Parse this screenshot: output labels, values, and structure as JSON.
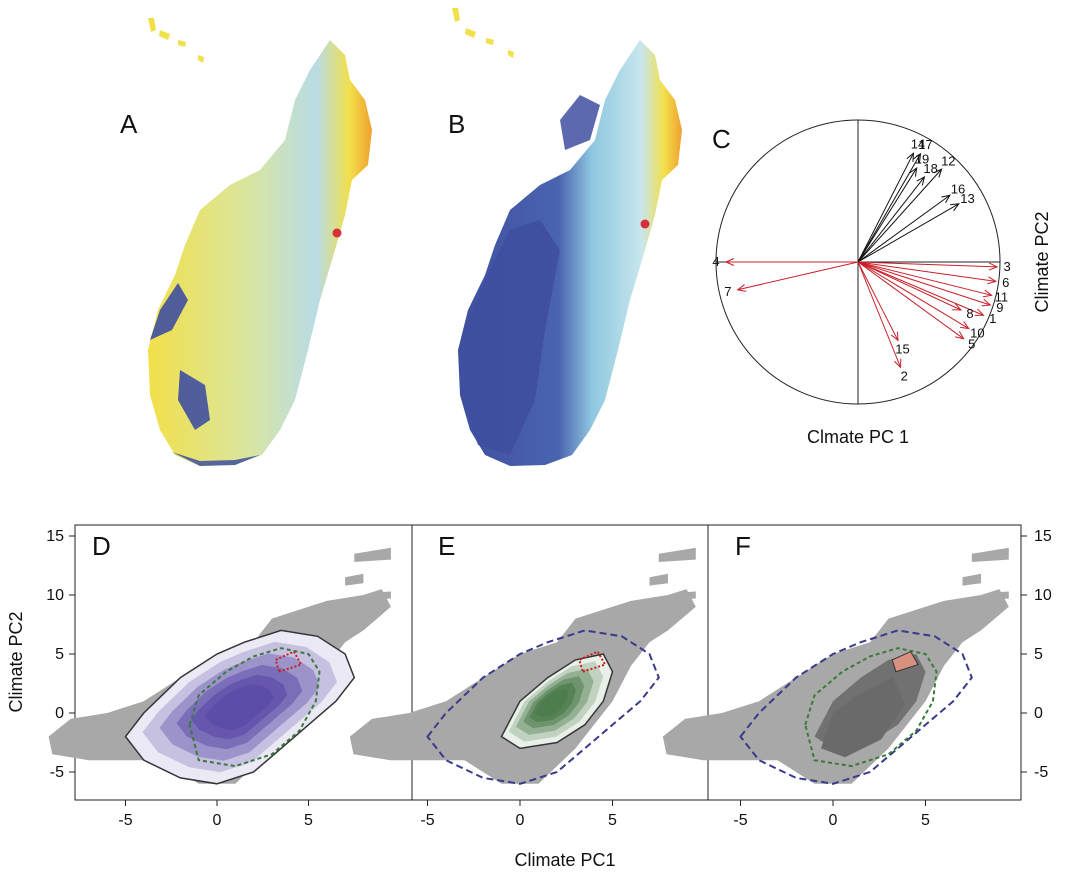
{
  "panels": {
    "a": "A",
    "b": "B",
    "c": "C",
    "d": "D",
    "e": "E",
    "f": "F"
  },
  "colors": {
    "map_yellow": "#f2e04a",
    "map_light_blue": "#b8dbe6",
    "map_dark_blue": "#3f4fa0",
    "map_orange": "#f0a030",
    "site_red": "#d8303a",
    "arrow_black": "#111111",
    "arrow_red": "#c8202a",
    "background_grey": "#a8a8a8",
    "purple_density": "#5a4aa8",
    "green_density": "#4a7a4a",
    "dark_grey_density": "#6a6a6a",
    "dashed_blue": "#3a3a8a",
    "dashed_green": "#3a7a3a",
    "dotted_red": "#c82020",
    "salmon_patch": "#d89080"
  },
  "pca_circle": {
    "xlabel": "Clmate PC 1",
    "ylabel": "Climate PC2",
    "black_arrows": [
      {
        "label": "14",
        "angle": 63,
        "len": 0.86
      },
      {
        "label": "17",
        "angle": 60,
        "len": 0.88
      },
      {
        "label": "19",
        "angle": 58,
        "len": 0.78
      },
      {
        "label": "18",
        "angle": 52,
        "len": 0.76
      },
      {
        "label": "12",
        "angle": 48,
        "len": 0.88
      },
      {
        "label": "16",
        "angle": 36,
        "len": 0.8
      },
      {
        "label": "13",
        "angle": 30,
        "len": 0.82
      }
    ],
    "red_arrows": [
      {
        "label": "4",
        "angle": 180,
        "len": 0.93
      },
      {
        "label": "7",
        "angle": 193,
        "len": 0.87
      },
      {
        "label": "3",
        "angle": -2,
        "len": 0.98
      },
      {
        "label": "6",
        "angle": -8,
        "len": 0.98
      },
      {
        "label": "11",
        "angle": -14,
        "len": 0.97
      },
      {
        "label": "9",
        "angle": -18,
        "len": 0.98
      },
      {
        "label": "1",
        "angle": -23,
        "len": 0.96
      },
      {
        "label": "8",
        "angle": -25,
        "len": 0.8
      },
      {
        "label": "10",
        "angle": -31,
        "len": 0.91
      },
      {
        "label": "5",
        "angle": -36,
        "len": 0.92
      },
      {
        "label": "15",
        "angle": -63,
        "len": 0.62
      },
      {
        "label": "2",
        "angle": -68,
        "len": 0.8
      }
    ]
  },
  "chart_data": [
    {
      "panel": "D",
      "type": "area",
      "xlim": [
        -8,
        10
      ],
      "ylim": [
        -7,
        16
      ],
      "x_ticks": [
        -5,
        0,
        5
      ],
      "y_ticks": [
        -5,
        0,
        5,
        10,
        15
      ]
    },
    {
      "panel": "E",
      "type": "area",
      "xlim": [
        -8,
        10
      ],
      "ylim": [
        -7,
        16
      ],
      "x_ticks": [
        -5,
        0,
        5
      ]
    },
    {
      "panel": "F",
      "type": "area",
      "xlim": [
        -8,
        10
      ],
      "ylim": [
        -7,
        16
      ],
      "x_ticks": [
        -5,
        0,
        5
      ],
      "y_ticks": [
        -5,
        0,
        5,
        10,
        15
      ]
    }
  ],
  "bottom_axes": {
    "xlabel": "Climate PC1",
    "ylabel": "Climate PC2"
  }
}
